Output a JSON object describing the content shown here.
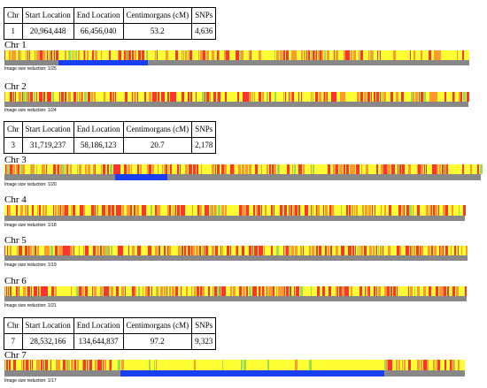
{
  "colors": {
    "yellow": "#ffff33",
    "orange": "#ff9933",
    "red": "#ff3333",
    "green": "#99dd55",
    "gray": "#888888",
    "match": "#1a3ff0"
  },
  "headers": [
    "Chr",
    "Start Location",
    "End Location",
    "Centimorgans (cM)",
    "SNPs"
  ],
  "segments": [
    {
      "chr": "1",
      "start": "20,964,448",
      "end": "66,456,040",
      "cm": "53.2",
      "snps": "4,636"
    },
    {
      "chr": "3",
      "start": "31,719,237",
      "end": "58,186,123",
      "cm": "20.7",
      "snps": "2,178"
    },
    {
      "chr": "7",
      "start": "28,532,166",
      "end": "134,644,837",
      "cm": "97.2",
      "snps": "9,323"
    }
  ],
  "chromosomes": [
    {
      "label": "Chr 1",
      "reduction": "Image size reduction: 1/25"
    },
    {
      "label": "Chr 2",
      "reduction": "Image size reduction: 1/24"
    },
    {
      "label": "Chr 3",
      "reduction": "Image size reduction: 1/20"
    },
    {
      "label": "Chr 4",
      "reduction": "Image size reduction: 1/18"
    },
    {
      "label": "Chr 5",
      "reduction": "Image size reduction: 1/19"
    },
    {
      "label": "Chr 6",
      "reduction": "Image size reduction: 1/21"
    },
    {
      "label": "Chr 7",
      "reduction": "Image size reduction: 1/17"
    }
  ]
}
